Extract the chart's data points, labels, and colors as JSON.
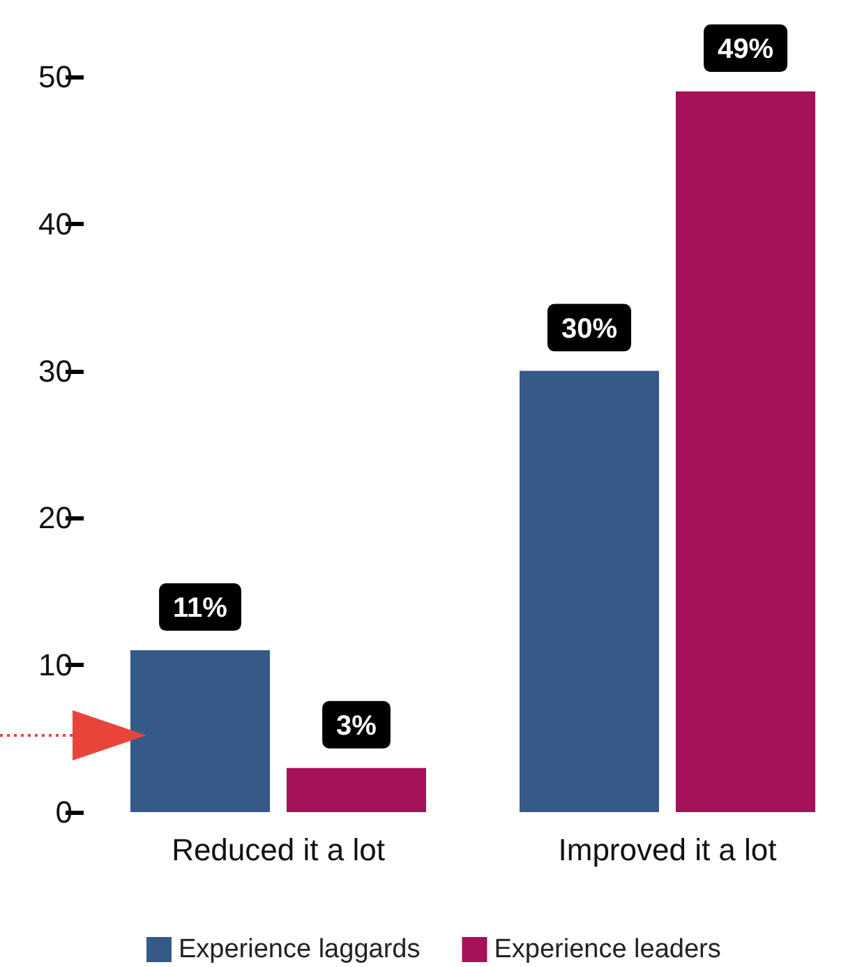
{
  "chart_data": {
    "type": "bar",
    "categories": [
      "Reduced it a lot",
      "Improved it a lot"
    ],
    "series": [
      {
        "name": "Experience laggards",
        "color": "#355a88",
        "values": [
          11,
          30
        ],
        "value_labels": [
          "11%",
          "30%"
        ]
      },
      {
        "name": "Experience leaders",
        "color": "#a6125a",
        "values": [
          3,
          49
        ],
        "value_labels": [
          "3%",
          "49%"
        ]
      }
    ],
    "ylim": [
      0,
      50
    ],
    "yticks": [
      0,
      10,
      20,
      30,
      40,
      50
    ],
    "grid": false,
    "legend": "bottom"
  }
}
